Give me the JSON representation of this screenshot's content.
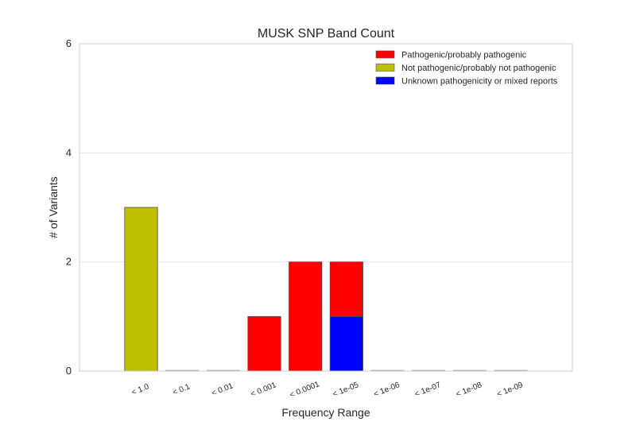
{
  "chart_data": {
    "type": "bar",
    "stacked": true,
    "title": "MUSK SNP Band Count",
    "xlabel": "Frequency Range",
    "ylabel": "# of Variants",
    "ylim": [
      0,
      6
    ],
    "yticks": [
      0,
      2,
      4,
      6
    ],
    "grid": true,
    "legend_position": "top-right",
    "categories": [
      "< 1.0",
      "< 0.1",
      "< 0.01",
      "< 0.001",
      "< 0.0001",
      "< 1e-05",
      "< 1e-06",
      "< 1e-07",
      "< 1e-08",
      "< 1e-09"
    ],
    "series": [
      {
        "name": "Unknown pathogenicity or mixed reports",
        "color": "#0000ff",
        "values": [
          0,
          0,
          0,
          0,
          0,
          1,
          0,
          0,
          0,
          0
        ]
      },
      {
        "name": "Pathogenic/probably pathogenic",
        "color": "#ff0000",
        "values": [
          0,
          0,
          0,
          1,
          2,
          1,
          0,
          0,
          0,
          0
        ]
      },
      {
        "name": "Not pathogenic/probably not pathogenic",
        "color": "#bfbf00",
        "values": [
          3,
          0,
          0,
          0,
          0,
          0,
          0,
          0,
          0,
          0
        ]
      }
    ],
    "legend_order": [
      "Pathogenic/probably pathogenic",
      "Not pathogenic/probably not pathogenic",
      "Unknown pathogenicity or mixed reports"
    ]
  }
}
